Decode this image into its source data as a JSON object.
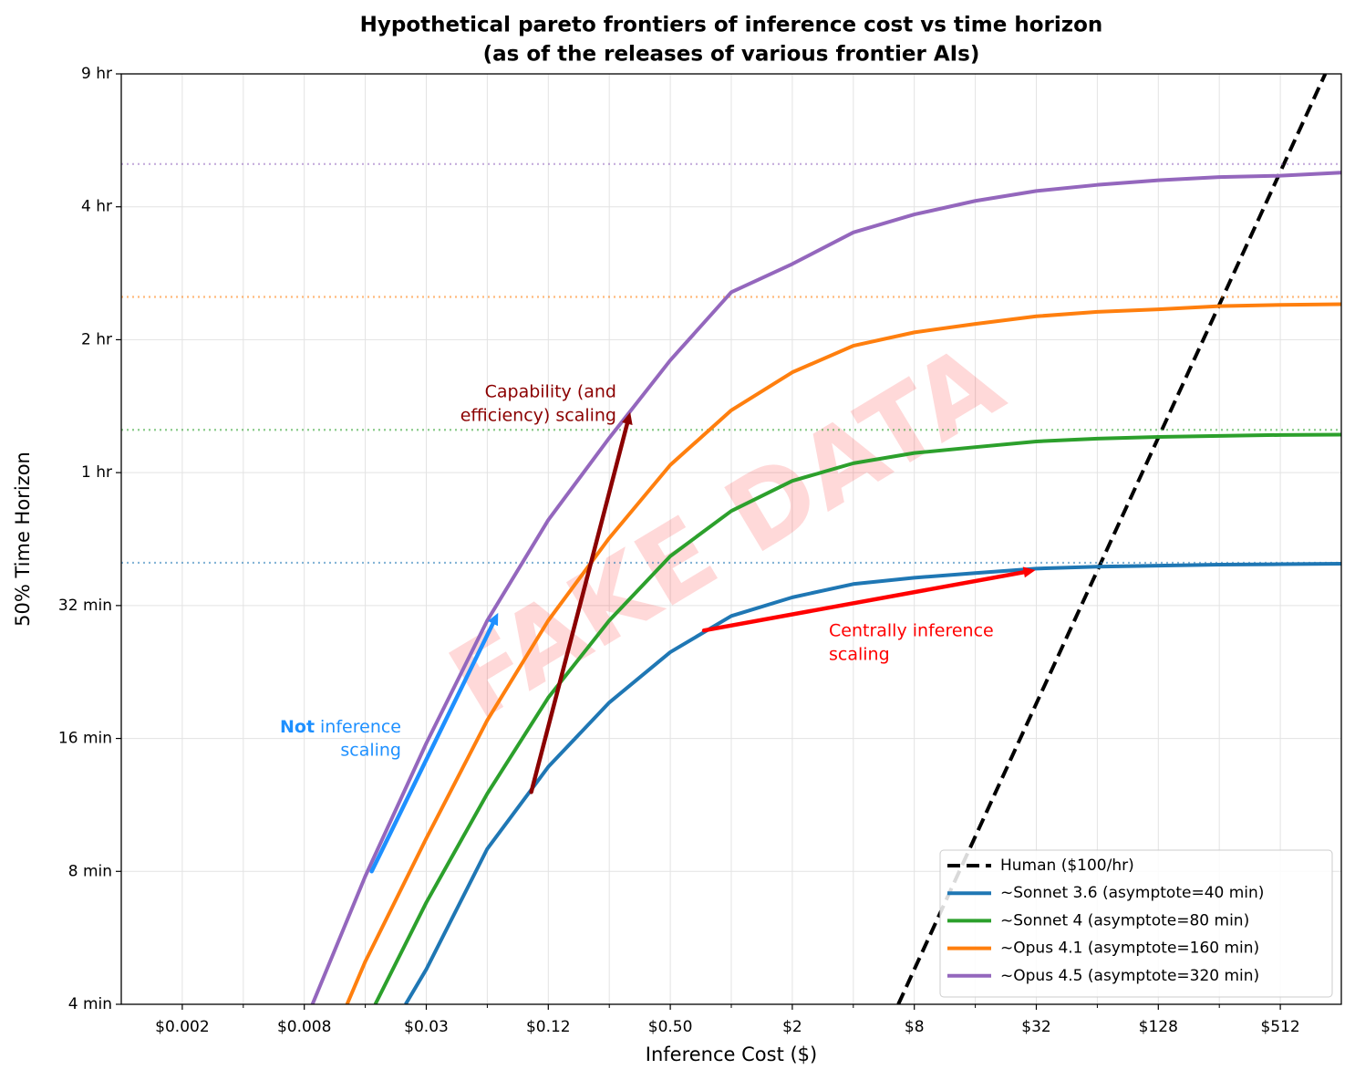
{
  "chart_data": {
    "type": "line",
    "title": "Hypothetical pareto frontiers of inference cost vs time horizon",
    "subtitle": "(as of the releases of various frontier AIs)",
    "x_label": "Inference Cost ($)",
    "y_label": "50% Time Horizon",
    "watermark": "FAKE DATA",
    "log_x": true,
    "log_y": true,
    "grid": true,
    "legend": "lower right",
    "xlim": [
      0.0009765625,
      1024
    ],
    "ylim": [
      4,
      512
    ],
    "xticks": [
      {
        "value": 0.001953125,
        "label": "$0.002"
      },
      {
        "value": 0.0078125,
        "label": "$0.008"
      },
      {
        "value": 0.03125,
        "label": "$0.03"
      },
      {
        "value": 0.125,
        "label": "$0.12"
      },
      {
        "value": 0.5,
        "label": "$0.50"
      },
      {
        "value": 2,
        "label": "$2"
      },
      {
        "value": 8,
        "label": "$8"
      },
      {
        "value": 32,
        "label": "$32"
      },
      {
        "value": 128,
        "label": "$128"
      },
      {
        "value": 512,
        "label": "$512"
      }
    ],
    "xminorticks": [
      0.00390625,
      0.015625,
      0.0625,
      0.25,
      1,
      4,
      16,
      64,
      256
    ],
    "yticks": [
      {
        "value": 4,
        "label": "4 min"
      },
      {
        "value": 8,
        "label": "8 min"
      },
      {
        "value": 16,
        "label": "16 min"
      },
      {
        "value": 32,
        "label": "32 min"
      },
      {
        "value": 64,
        "label": "1 hr"
      },
      {
        "value": 128,
        "label": "2 hr"
      },
      {
        "value": 256,
        "label": "4 hr"
      },
      {
        "value": 512,
        "label": "9 hr"
      }
    ],
    "series": [
      {
        "name": "Human ($100/hr)",
        "color": "#000000",
        "style": "dashed",
        "x": [
          6.67,
          853
        ],
        "values": [
          4,
          512
        ]
      },
      {
        "name": "~Sonnet 3.6 (asymptote=40 min)",
        "color": "#1f77b4",
        "style": "solid",
        "asymptote": 40,
        "x": [
          0.0247,
          0.03125,
          0.0625,
          0.125,
          0.25,
          0.5,
          1,
          2,
          4,
          8,
          16,
          32,
          64,
          128,
          256,
          512,
          1024
        ],
        "values": [
          4,
          4.8,
          9.0,
          13.8,
          19.3,
          25.1,
          30.3,
          33.4,
          35.8,
          37.0,
          37.9,
          38.8,
          39.2,
          39.4,
          39.6,
          39.7,
          39.8
        ]
      },
      {
        "name": "~Sonnet 4 (asymptote=80 min)",
        "color": "#2ca02c",
        "style": "solid",
        "asymptote": 80,
        "x": [
          0.0175,
          0.03125,
          0.0625,
          0.125,
          0.25,
          0.5,
          1,
          2,
          4,
          8,
          16,
          32,
          64,
          128,
          256,
          512,
          1024
        ],
        "values": [
          4,
          6.8,
          12.0,
          19.8,
          29.6,
          41.4,
          52.4,
          61.3,
          67.2,
          70.9,
          73.1,
          75.3,
          76.4,
          77.1,
          77.5,
          77.9,
          78.0
        ]
      },
      {
        "name": "~Opus 4.1 (asymptote=160 min)",
        "color": "#ff7f0e",
        "style": "solid",
        "asymptote": 160,
        "x": [
          0.0127,
          0.015625,
          0.03125,
          0.0625,
          0.125,
          0.25,
          0.5,
          1,
          2,
          4,
          8,
          16,
          32,
          64,
          128,
          256,
          512,
          1024
        ],
        "values": [
          4,
          5.0,
          9.5,
          17.6,
          29.6,
          45.5,
          66.6,
          88.6,
          108,
          124,
          133,
          139,
          144.6,
          148,
          150,
          152.5,
          153.5,
          154
        ]
      },
      {
        "name": "~Opus 4.5 (asymptote=320 min)",
        "color": "#9467bd",
        "style": "solid",
        "asymptote": 320,
        "x": [
          0.00857,
          0.015625,
          0.03125,
          0.0625,
          0.125,
          0.25,
          0.5,
          1,
          2,
          4,
          8,
          16,
          32,
          64,
          128,
          256,
          512,
          1024
        ],
        "values": [
          4,
          7.8,
          15.6,
          29.6,
          50,
          76.7,
          115,
          164,
          190,
          224,
          246,
          264,
          278,
          287,
          294,
          299,
          301,
          306
        ]
      }
    ],
    "annotations": [
      {
        "text": [
          "Not",
          "inference",
          "scaling"
        ],
        "color": "#1e90ff",
        "arrow_x": [
          0.0168,
          0.0707
        ],
        "arrow_y": [
          8,
          30.8
        ]
      },
      {
        "text": [
          "Capability (and",
          "efficiency) scaling"
        ],
        "color": "#8b0000",
        "arrow_x": [
          0.103,
          0.317
        ],
        "arrow_y": [
          12.1,
          87.7
        ]
      },
      {
        "text": [
          "Centrally inference",
          "scaling"
        ],
        "color": "#ff0000",
        "arrow_x": [
          0.733,
          31.7
        ],
        "arrow_y": [
          28.1,
          38.5
        ]
      }
    ]
  }
}
